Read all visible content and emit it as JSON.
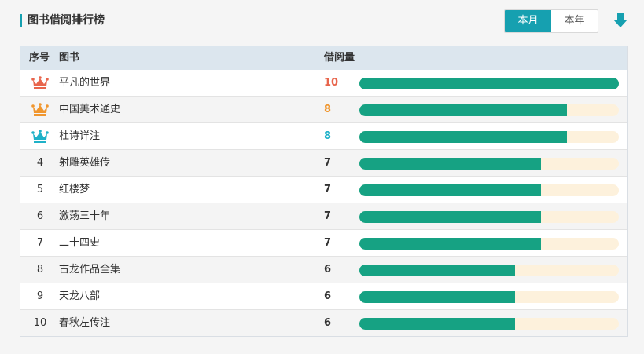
{
  "header": {
    "title": "图书借阅排行榜",
    "tabs": [
      {
        "label": "本月",
        "active": true
      },
      {
        "label": "本年",
        "active": false
      }
    ],
    "download_icon": "download-arrow-icon"
  },
  "table": {
    "columns": {
      "rank": "序号",
      "book": "图书",
      "count": "借阅量"
    },
    "max_value": 10,
    "rows": [
      {
        "rank": "1",
        "crown": "crown-icon",
        "crown_color": "#e8654c",
        "book": "平凡的世界",
        "count": "10",
        "value": 10,
        "count_color": "#e8654c"
      },
      {
        "rank": "2",
        "crown": "crown-icon",
        "crown_color": "#f0962e",
        "book": "中国美术通史",
        "count": "8",
        "value": 8,
        "count_color": "#f0962e"
      },
      {
        "rank": "3",
        "crown": "crown-icon",
        "crown_color": "#1fb1c8",
        "book": "杜诗详注",
        "count": "8",
        "value": 8,
        "count_color": "#1fb1c8"
      },
      {
        "rank": "4",
        "book": "射雕英雄传",
        "count": "7",
        "value": 7
      },
      {
        "rank": "5",
        "book": "红楼梦",
        "count": "7",
        "value": 7
      },
      {
        "rank": "6",
        "book": "激荡三十年",
        "count": "7",
        "value": 7
      },
      {
        "rank": "7",
        "book": "二十四史",
        "count": "7",
        "value": 7
      },
      {
        "rank": "8",
        "book": "古龙作品全集",
        "count": "6",
        "value": 6
      },
      {
        "rank": "9",
        "book": "天龙八部",
        "count": "6",
        "value": 6
      },
      {
        "rank": "10",
        "book": "春秋左传注",
        "count": "6",
        "value": 6
      }
    ]
  },
  "colors": {
    "accent": "#16a0b0",
    "bar": "#16a283",
    "bar_track": "#fdf1dc",
    "header_bg": "#dce6ee"
  }
}
